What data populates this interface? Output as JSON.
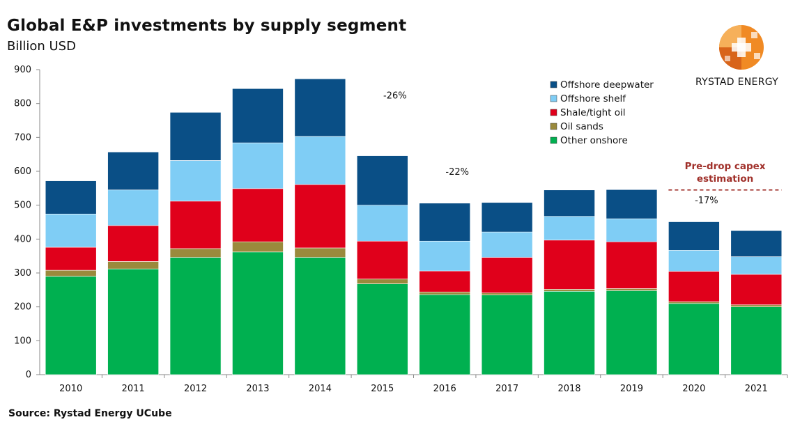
{
  "title": "Global E&P investments by supply segment",
  "subtitle": "Billion USD",
  "source": "Source: Rystad Energy UCube",
  "logo_text": "RYSTAD ENERGY",
  "chart_data": {
    "type": "bar",
    "stacked": true,
    "categories": [
      "2010",
      "2011",
      "2012",
      "2013",
      "2014",
      "2015",
      "2016",
      "2017",
      "2018",
      "2019",
      "2020",
      "2021"
    ],
    "ylim": [
      0,
      900
    ],
    "yticks": [
      0,
      100,
      200,
      300,
      400,
      500,
      600,
      700,
      800,
      900
    ],
    "grid": false,
    "legend_position": "top-right",
    "series": [
      {
        "name": "Other onshore",
        "color": "#00b050",
        "values": [
          290,
          312,
          346,
          362,
          346,
          268,
          236,
          235,
          246,
          248,
          210,
          200
        ]
      },
      {
        "name": "Oil sands",
        "color": "#9a8a3c",
        "values": [
          18,
          22,
          26,
          30,
          28,
          14,
          8,
          6,
          6,
          6,
          5,
          6
        ]
      },
      {
        "name": "Shale/tight oil",
        "color": "#e0001b",
        "values": [
          68,
          106,
          140,
          157,
          187,
          112,
          62,
          105,
          145,
          138,
          90,
          90
        ]
      },
      {
        "name": "Offshore shelf",
        "color": "#7fcdf5",
        "values": [
          98,
          105,
          120,
          135,
          142,
          106,
          88,
          75,
          70,
          68,
          62,
          52
        ]
      },
      {
        "name": "Offshore deepwater",
        "color": "#0a4f86",
        "values": [
          98,
          112,
          142,
          160,
          170,
          146,
          112,
          87,
          78,
          86,
          84,
          77
        ]
      }
    ],
    "legend_order": [
      "Offshore deepwater",
      "Offshore shelf",
      "Shale/tight oil",
      "Oil sands",
      "Other onshore"
    ],
    "annotations": [
      {
        "text": "-26%",
        "x": "2015",
        "y": 815
      },
      {
        "text": "-22%",
        "x": "2016",
        "y": 590
      },
      {
        "text": "-17%",
        "x": "2020",
        "y": 505
      }
    ],
    "reference_line": {
      "label_line1": "Pre-drop capex",
      "label_line2": "estimation",
      "value": 545,
      "from": "2020",
      "to": "2021",
      "color": "#a0302a"
    }
  }
}
